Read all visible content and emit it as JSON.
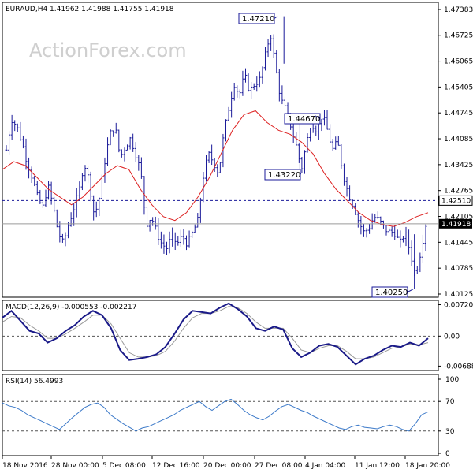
{
  "chart_data": [
    {
      "type": "candlestick",
      "panel": "price",
      "symbol_header": "EURAUD,H4  1.41962 1.41988 1.41755 1.41918",
      "watermark": "ActionForex.com",
      "y_ticks": [
        "1.47383",
        "1.46725",
        "1.46065",
        "1.45405",
        "1.44745",
        "1.44085",
        "1.43425",
        "1.42765",
        "1.42105",
        "1.41445",
        "1.40785",
        "1.40125"
      ],
      "ylim": [
        1.40125,
        1.47383
      ],
      "last_price_label": "1.41918",
      "last_price": 1.41918,
      "resistance_label": "1.42510",
      "resistance": 1.4251,
      "callouts": [
        {
          "label": "1.47210",
          "value": 1.4721
        },
        {
          "label": "1.44670",
          "value": 1.4467
        },
        {
          "label": "1.43220",
          "value": 1.4322
        },
        {
          "label": "1.40250",
          "value": 1.4025
        }
      ],
      "price_close_points": [
        1.438,
        1.446,
        1.444,
        1.44,
        1.435,
        1.431,
        1.426,
        1.423,
        1.429,
        1.424,
        1.417,
        1.414,
        1.419,
        1.423,
        1.427,
        1.435,
        1.43,
        1.421,
        1.426,
        1.435,
        1.442,
        1.444,
        1.436,
        1.439,
        1.441,
        1.437,
        1.432,
        1.419,
        1.421,
        1.417,
        1.414,
        1.413,
        1.416,
        1.414,
        1.416,
        1.414,
        1.417,
        1.42,
        1.431,
        1.437,
        1.435,
        1.432,
        1.442,
        1.449,
        1.455,
        1.452,
        1.457,
        1.453,
        1.455,
        1.456,
        1.462,
        1.468,
        1.459,
        1.451,
        1.448,
        1.444,
        1.439,
        1.433,
        1.44,
        1.445,
        1.443,
        1.447,
        1.443,
        1.438,
        1.44,
        1.432,
        1.427,
        1.424,
        1.42,
        1.417,
        1.418,
        1.421,
        1.42,
        1.418,
        1.417,
        1.417,
        1.414,
        1.417,
        1.412,
        1.406,
        1.412,
        1.419
      ],
      "ma_points": [
        1.433,
        1.435,
        1.434,
        1.431,
        1.428,
        1.426,
        1.424,
        1.426,
        1.429,
        1.432,
        1.434,
        1.433,
        1.428,
        1.424,
        1.421,
        1.42,
        1.422,
        1.426,
        1.431,
        1.437,
        1.443,
        1.447,
        1.448,
        1.445,
        1.443,
        1.442,
        1.44,
        1.437,
        1.432,
        1.428,
        1.425,
        1.422,
        1.42,
        1.419,
        1.4185,
        1.4195,
        1.421,
        1.422
      ],
      "x_ticks": [
        "18 Nov 2016",
        "28 Nov 00:00",
        "5 Dec 08:00",
        "12 Dec 16:00",
        "20 Dec 00:00",
        "27 Dec 08:00",
        "4 Jan 04:00",
        "11 Jan 12:00",
        "18 Jan 20:00"
      ],
      "colors": {
        "candle": "#1a1a99",
        "ma": "#dd2222",
        "resistance": "#1a1a99",
        "last": "#1a1a99"
      }
    },
    {
      "type": "line",
      "panel": "macd",
      "header": "MACD(12,26,9) -0.000553 -0.002217",
      "y_ticks": [
        "0.007201",
        "0.00",
        "-0.006888"
      ],
      "ylim": [
        -0.0079,
        0.0082
      ],
      "macd_points": [
        0.0042,
        0.0058,
        0.0035,
        0.0012,
        0.0006,
        -0.0015,
        -0.0005,
        0.0012,
        0.0025,
        0.0045,
        0.0058,
        0.0048,
        0.0018,
        -0.0032,
        -0.0055,
        -0.0052,
        -0.0048,
        -0.0042,
        -0.0025,
        0.0005,
        0.0038,
        0.0058,
        0.0055,
        0.0052,
        0.0065,
        0.0075,
        0.0062,
        0.0045,
        0.0018,
        0.0012,
        0.0022,
        0.0015,
        -0.0028,
        -0.0048,
        -0.0038,
        -0.0022,
        -0.0018,
        -0.0025,
        -0.0045,
        -0.0065,
        -0.0052,
        -0.0045,
        -0.0032,
        -0.0022,
        -0.0025,
        -0.0015,
        -0.0022,
        -0.0005
      ],
      "signal_points": [
        0.0032,
        0.0045,
        0.0042,
        0.0025,
        0.0012,
        -0.0005,
        -0.0005,
        0.0005,
        0.0018,
        0.0032,
        0.0048,
        0.0048,
        0.0028,
        -0.0005,
        -0.0038,
        -0.0048,
        -0.0048,
        -0.0045,
        -0.0035,
        -0.0012,
        0.0018,
        0.0042,
        0.0052,
        0.0052,
        0.0058,
        0.0068,
        0.0065,
        0.0052,
        0.0032,
        0.0018,
        0.0018,
        0.0018,
        -0.0005,
        -0.0032,
        -0.0038,
        -0.0028,
        -0.0022,
        -0.0022,
        -0.0035,
        -0.0052,
        -0.0052,
        -0.0048,
        -0.0038,
        -0.0028,
        -0.0025,
        -0.0018,
        -0.002,
        -0.0015
      ],
      "colors": {
        "macd": "#1a1a88",
        "signal": "#999999",
        "zero": "#555555"
      }
    },
    {
      "type": "line",
      "panel": "rsi",
      "header": "RSI(14) 56.4993",
      "y_ticks": [
        "100",
        "70",
        "30",
        "0"
      ],
      "ylim": [
        0,
        100
      ],
      "levels": [
        70,
        30
      ],
      "rsi_points": [
        68,
        64,
        62,
        58,
        52,
        48,
        44,
        40,
        36,
        32,
        40,
        48,
        55,
        62,
        66,
        68,
        62,
        52,
        46,
        40,
        35,
        30,
        34,
        36,
        40,
        44,
        48,
        52,
        58,
        62,
        66,
        70,
        63,
        58,
        64,
        70,
        73,
        66,
        58,
        52,
        48,
        45,
        50,
        57,
        63,
        66,
        62,
        58,
        55,
        50,
        46,
        42,
        38,
        34,
        32,
        36,
        38,
        35,
        34,
        33,
        36,
        38,
        36,
        32,
        30,
        40,
        52,
        56
      ],
      "colors": {
        "rsi": "#3a78c8",
        "levels": "#555555"
      }
    }
  ]
}
